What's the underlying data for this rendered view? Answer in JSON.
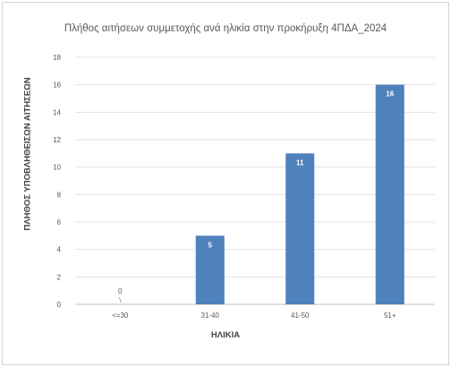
{
  "chart_data": {
    "type": "bar",
    "title": "Πλήθος αιτήσεων συμμετοχής ανά ηλικία στην προκήρυξη 4ΠΔΑ_2024",
    "xlabel": "ΗΛΙΚΙΑ",
    "ylabel": "ΠΛΗΘΟΣ ΥΠΟΒΛΗΘΕΙΣΩΝ ΑΙΤΗΣΕΩΝ",
    "categories": [
      "<=30",
      "31-40",
      "41-50",
      "51+"
    ],
    "values": [
      0,
      5,
      11,
      16
    ],
    "ylim": [
      0,
      18
    ],
    "yticks": [
      0,
      2,
      4,
      6,
      8,
      10,
      12,
      14,
      16,
      18
    ],
    "grid": true,
    "bar_color": "#4f81bd",
    "label_color_inside": "#ffffff",
    "label_color_outside": "#595959"
  }
}
